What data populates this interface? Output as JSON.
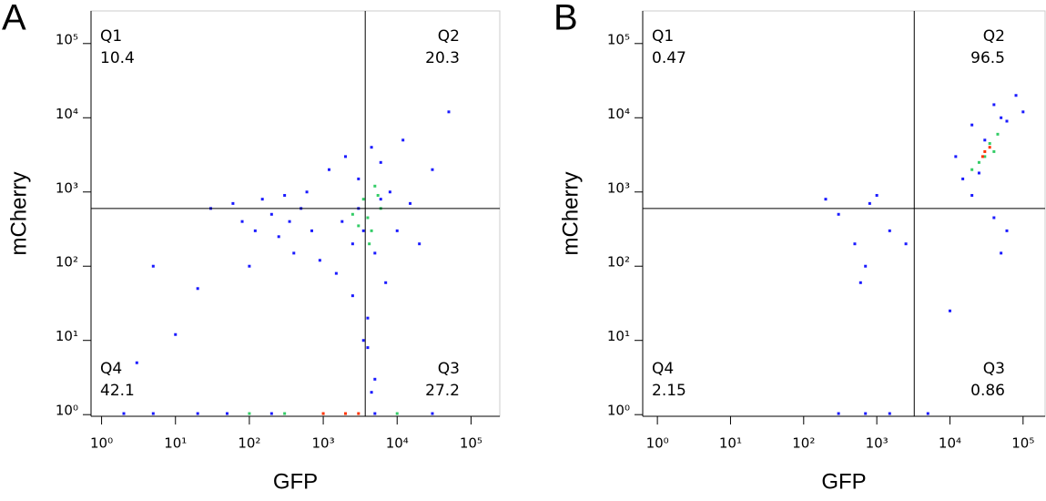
{
  "chart_data": [
    {
      "type": "scatter",
      "panel": "A",
      "xlabel": "GFP",
      "ylabel": "mCherry",
      "xscale": "log",
      "yscale": "log",
      "xlim": [
        0.72,
        245000
      ],
      "ylim": [
        0.95,
        275000
      ],
      "xticks": [
        {
          "value": 1,
          "label": "10⁰"
        },
        {
          "value": 10,
          "label": "10¹"
        },
        {
          "value": 100,
          "label": "10²"
        },
        {
          "value": 1000,
          "label": "10³"
        },
        {
          "value": 10000,
          "label": "10⁴"
        },
        {
          "value": 100000,
          "label": "10⁵"
        }
      ],
      "yticks": [
        {
          "value": 1,
          "label": "10⁰"
        },
        {
          "value": 10,
          "label": "10¹"
        },
        {
          "value": 100,
          "label": "10²"
        },
        {
          "value": 1000,
          "label": "10³"
        },
        {
          "value": 10000,
          "label": "10⁴"
        },
        {
          "value": 100000,
          "label": "10⁵"
        }
      ],
      "gate": {
        "x": 3700,
        "y": 600
      },
      "quadrants": [
        {
          "name": "Q1",
          "value": 10.4
        },
        {
          "name": "Q2",
          "value": 20.3
        },
        {
          "name": "Q3",
          "value": 27.2
        },
        {
          "name": "Q4",
          "value": 42.1
        }
      ],
      "series": [
        {
          "color": "#1a1aff",
          "x": [
            30,
            60,
            80,
            120,
            150,
            200,
            250,
            300,
            400,
            500,
            700,
            900,
            1200,
            1500,
            2000,
            2500,
            3000,
            3500,
            4000,
            4000,
            4500,
            5000,
            6000,
            7000,
            8000,
            10000,
            12000,
            15000,
            20000,
            30000,
            50000,
            3000,
            2500,
            6000,
            1800,
            600,
            350,
            100,
            20,
            5,
            3,
            10,
            3500,
            5000,
            4500,
            2,
            5,
            20,
            50,
            200,
            5000,
            30000
          ],
          "values": [
            600,
            700,
            400,
            300,
            800,
            500,
            250,
            900,
            150,
            600,
            300,
            120,
            2000,
            80,
            3000,
            40,
            1500,
            300,
            20,
            8,
            4000,
            150,
            2500,
            60,
            1000,
            300,
            5000,
            700,
            200,
            2000,
            12000,
            600,
            200,
            800,
            400,
            1000,
            400,
            100,
            50,
            100,
            5,
            12,
            10,
            3,
            2,
            1,
            1,
            1,
            1,
            1,
            1,
            1
          ]
        },
        {
          "color": "#33cc66",
          "x": [
            2500,
            3500,
            4500,
            5000,
            4000,
            3000,
            6000,
            5500,
            4200,
            100,
            300,
            10000
          ],
          "values": [
            500,
            800,
            300,
            1200,
            450,
            350,
            600,
            900,
            200,
            1,
            1,
            1
          ]
        },
        {
          "color": "#ff3300",
          "x": [
            1000,
            2000,
            3000
          ],
          "values": [
            1,
            1,
            1
          ]
        }
      ]
    },
    {
      "type": "scatter",
      "panel": "B",
      "xlabel": "GFP",
      "ylabel": "mCherry",
      "xscale": "log",
      "yscale": "log",
      "xlim": [
        0.63,
        200000
      ],
      "ylim": [
        0.95,
        275000
      ],
      "xticks": [
        {
          "value": 1,
          "label": "10⁰"
        },
        {
          "value": 10,
          "label": "10¹"
        },
        {
          "value": 100,
          "label": "10²"
        },
        {
          "value": 1000,
          "label": "10³"
        },
        {
          "value": 10000,
          "label": "10⁴"
        },
        {
          "value": 100000,
          "label": "10⁵"
        }
      ],
      "yticks": [
        {
          "value": 1,
          "label": "10⁰"
        },
        {
          "value": 10,
          "label": "10¹"
        },
        {
          "value": 100,
          "label": "10²"
        },
        {
          "value": 1000,
          "label": "10³"
        },
        {
          "value": 10000,
          "label": "10⁴"
        },
        {
          "value": 100000,
          "label": "10⁵"
        }
      ],
      "gate": {
        "x": 3250,
        "y": 600
      },
      "quadrants": [
        {
          "name": "Q1",
          "value": 0.47
        },
        {
          "name": "Q2",
          "value": 96.5
        },
        {
          "name": "Q3",
          "value": 0.86
        },
        {
          "name": "Q4",
          "value": 2.15
        }
      ],
      "series": [
        {
          "color": "#1a1aff",
          "x": [
            40000,
            20000,
            15000,
            80000,
            60000,
            12000,
            25000,
            100000,
            30000,
            50000,
            200,
            300,
            500,
            700,
            800,
            1500,
            2500,
            600,
            1000,
            20000,
            60000,
            50000,
            40000,
            10000,
            300,
            700,
            1500,
            5000
          ],
          "values": [
            15000,
            8000,
            1500,
            20000,
            9000,
            3000,
            1800,
            12000,
            5000,
            10000,
            800,
            500,
            200,
            100,
            700,
            300,
            200,
            60,
            900,
            900,
            300,
            150,
            450,
            25,
            1,
            1,
            1,
            1
          ]
        },
        {
          "color": "#33cc66",
          "x": [
            25000,
            35000,
            20000,
            45000,
            30000,
            40000
          ],
          "values": [
            2500,
            4500,
            2000,
            6000,
            3000,
            3500
          ]
        },
        {
          "color": "#ff3300",
          "x": [
            30000,
            28000,
            35000
          ],
          "values": [
            3500,
            3000,
            4000
          ]
        }
      ]
    }
  ]
}
